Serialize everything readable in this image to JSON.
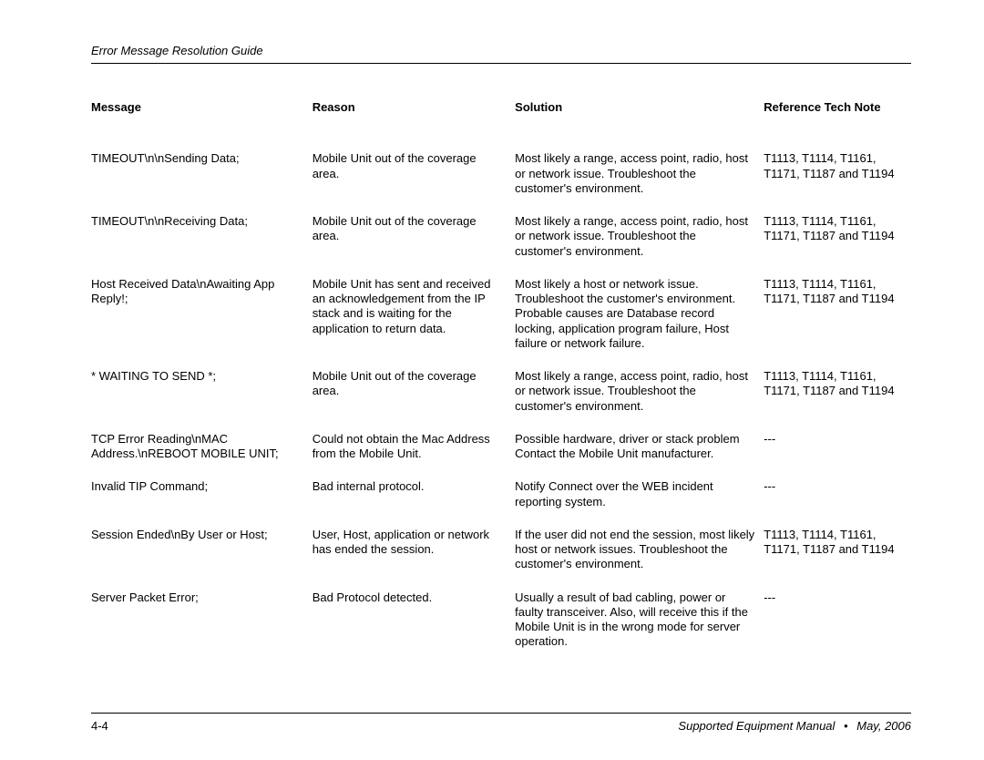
{
  "header": {
    "title": "Error Message Resolution Guide"
  },
  "table": {
    "columns": [
      "Message",
      "Reason",
      "Solution",
      "Reference Tech Note"
    ],
    "rows": [
      {
        "message": "TIMEOUT\\n\\nSending Data;",
        "reason": "Mobile Unit out of the coverage area.",
        "solution": "Most likely a range, access point, radio, host or network issue. Troubleshoot the customer's environment.",
        "ref": "T1113, T1114, T1161, T1171, T1187 and T1194"
      },
      {
        "message": "TIMEOUT\\n\\nReceiving Data;",
        "reason": "Mobile Unit out of the coverage area.",
        "solution": "Most likely a range, access point, radio, host or network issue. Troubleshoot the customer's environment.",
        "ref": "T1113, T1114, T1161, T1171, T1187 and T1194"
      },
      {
        "message": "Host Received Data\\nAwaiting App Reply!;",
        "reason": "Mobile Unit has sent and received an acknowledgement from the IP stack and is waiting for the application to return data.",
        "solution": "Most likely a host or network issue. Troubleshoot the customer's environment. Probable causes are Database record locking, application program failure, Host failure or network failure.",
        "ref": "T1113, T1114, T1161, T1171, T1187 and T1194"
      },
      {
        "message": "* WAITING TO SEND  *;",
        "reason": "Mobile Unit out of the coverage area.",
        "solution": "Most likely a range, access point, radio, host or network issue. Troubleshoot the customer's environment.",
        "ref": "T1113, T1114, T1161, T1171, T1187 and T1194"
      },
      {
        "message": "TCP Error Reading\\nMAC Address.\\nREBOOT MOBILE UNIT;",
        "reason": "Could not obtain the Mac Address from the Mobile Unit.",
        "solution": "Possible hardware, driver or stack problem Contact the Mobile Unit manufacturer.",
        "ref": "---"
      },
      {
        "message": "Invalid TIP Command;",
        "reason": "Bad internal protocol.",
        "solution": "Notify Connect over the WEB incident reporting system.",
        "ref": "---"
      },
      {
        "message": "Session Ended\\nBy User or Host;",
        "reason": "User, Host, application or network has ended the session.",
        "solution": "If the user did not end the session, most likely host or network issues. Troubleshoot the customer's environment.",
        "ref": "T1113, T1114, T1161, T1171, T1187 and T1194"
      },
      {
        "message": "Server Packet Error;",
        "reason": "Bad Protocol detected.",
        "solution": "Usually a result of bad cabling, power or faulty transceiver. Also, will receive this if the Mobile Unit is in the wrong mode for server operation.",
        "ref": "---"
      }
    ]
  },
  "footer": {
    "page_number": "4-4",
    "manual_title": "Supported Equipment Manual",
    "date": "May, 2006"
  }
}
